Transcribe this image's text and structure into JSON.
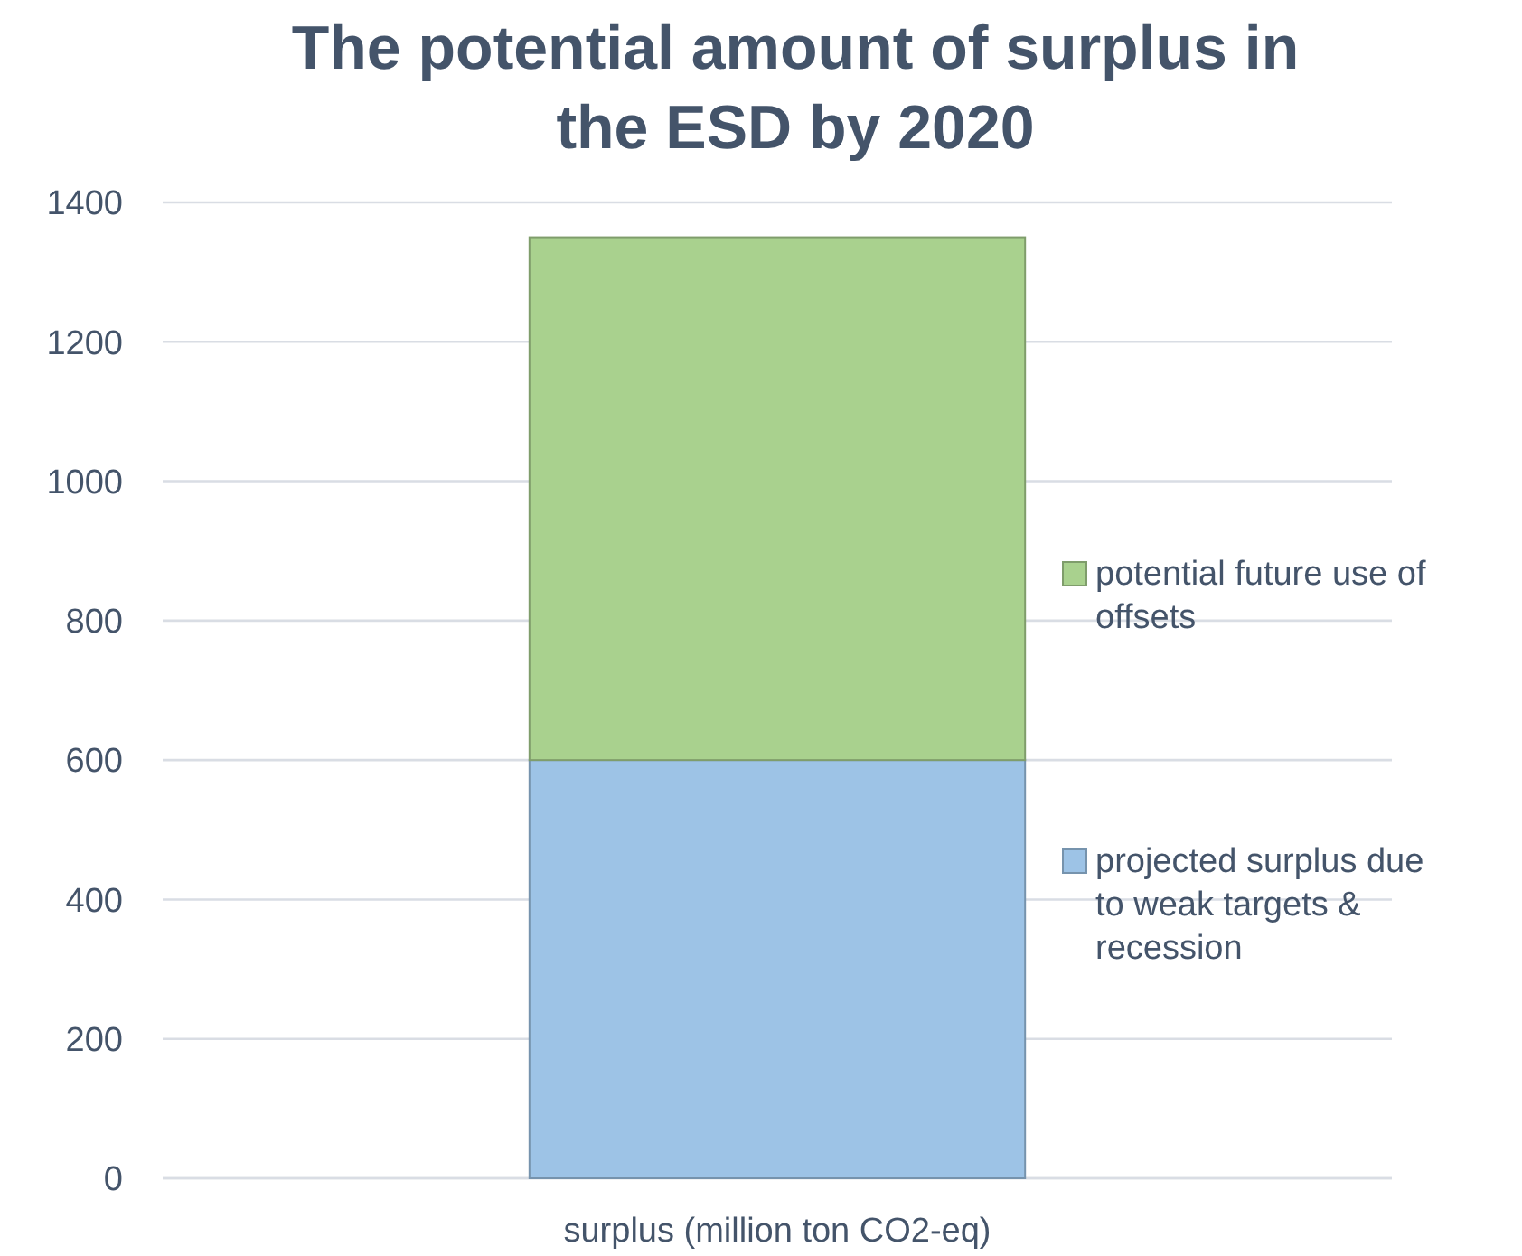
{
  "chart_data": {
    "type": "bar",
    "title": "The potential amount of surplus in the ESD by 2020",
    "categories": [
      "surplus (million ton CO2-eq)"
    ],
    "stacked": true,
    "series": [
      {
        "name": "projected surplus due to weak targets & recession",
        "color": "#9dc3e6",
        "values": [
          600
        ]
      },
      {
        "name": "potential future use of offsets",
        "color": "#a9d18e",
        "values": [
          750
        ]
      }
    ],
    "ylim": [
      0,
      1400
    ],
    "yticks": [
      0,
      200,
      400,
      600,
      800,
      1000,
      1200,
      1400
    ],
    "grid": "y",
    "legend": "right"
  }
}
